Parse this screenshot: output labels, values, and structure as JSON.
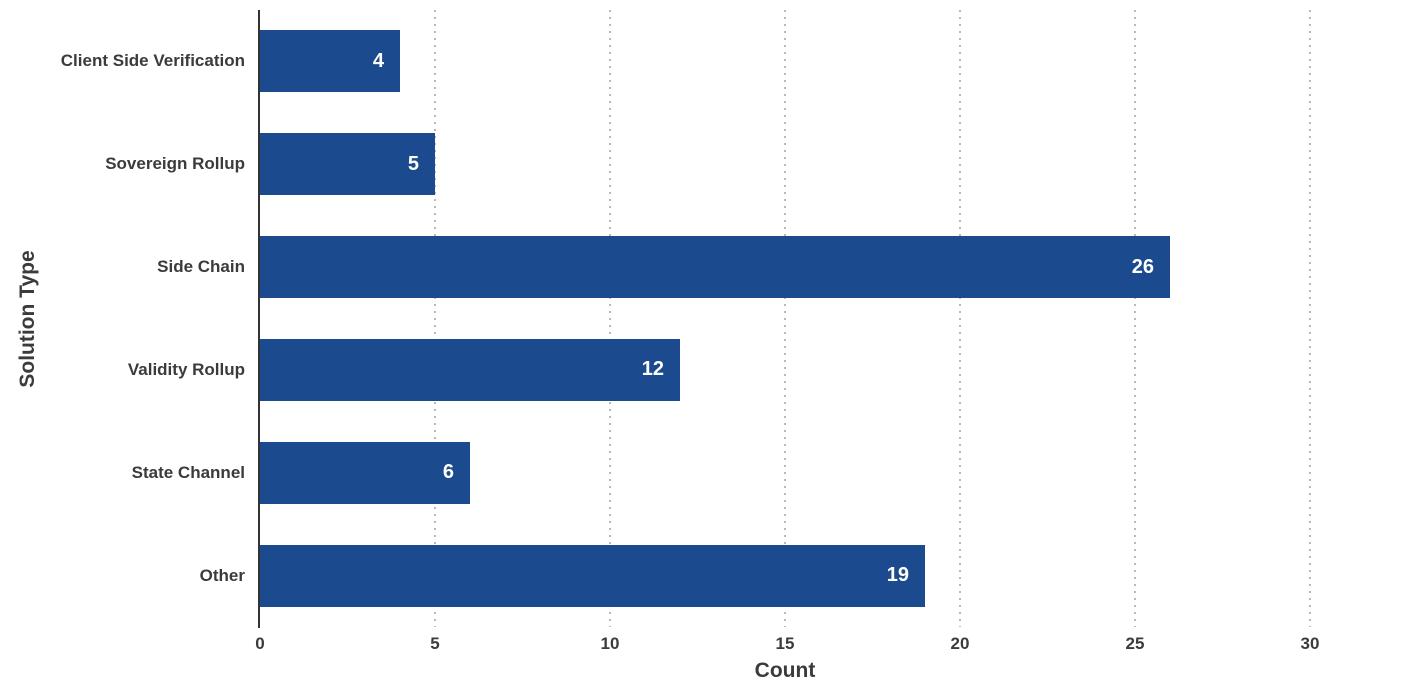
{
  "chart_data": {
    "type": "bar",
    "orientation": "horizontal",
    "categories": [
      "Client Side Verification",
      "Sovereign Rollup",
      "Side Chain",
      "Validity Rollup",
      "State Channel",
      "Other"
    ],
    "values": [
      4,
      5,
      26,
      12,
      6,
      19
    ],
    "title": "",
    "xlabel": "Count",
    "ylabel": "Solution Type",
    "xticks": [
      0,
      5,
      10,
      15,
      20,
      25,
      30
    ],
    "xlim": [
      0,
      32.4
    ],
    "grid": "dotted-vertical-gridlines",
    "legend": "none",
    "colors": {
      "bar": "#1b4a8f",
      "value_label": "#ffffff",
      "axis_text": "#3b3b3b",
      "axis_line": "#333333",
      "gridline": "#b9b9b9",
      "background": "#ffffff"
    }
  }
}
